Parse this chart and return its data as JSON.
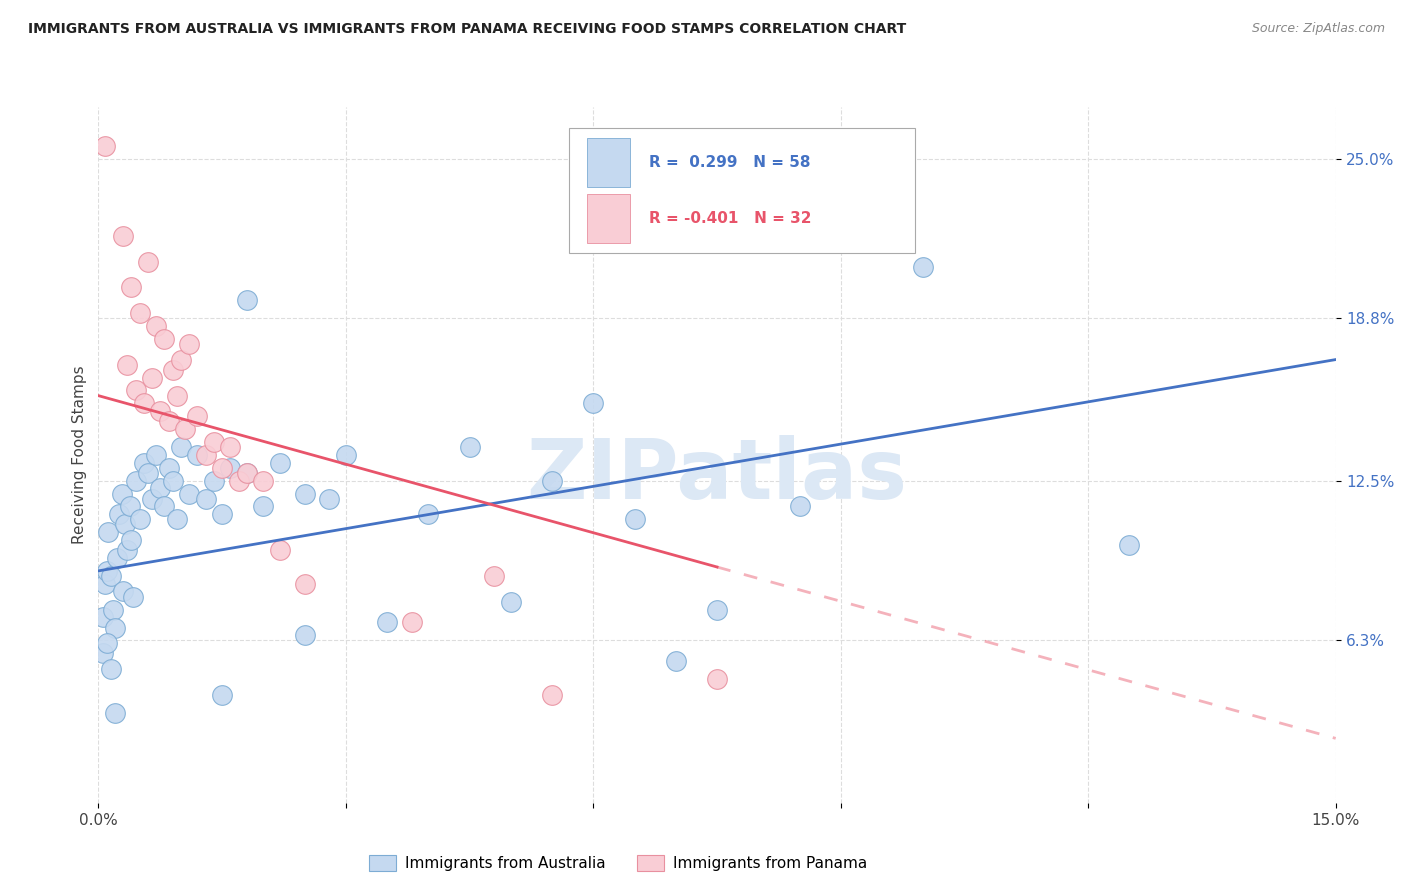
{
  "title": "IMMIGRANTS FROM AUSTRALIA VS IMMIGRANTS FROM PANAMA RECEIVING FOOD STAMPS CORRELATION CHART",
  "source": "Source: ZipAtlas.com",
  "ylabel": "Receiving Food Stamps",
  "ytick_values": [
    6.3,
    12.5,
    18.8,
    25.0
  ],
  "xmin": 0.0,
  "xmax": 15.0,
  "ymin": 0.0,
  "ymax": 27.0,
  "color_australia": "#c5d9f0",
  "color_panama": "#f9cdd5",
  "edge_color_australia": "#7dacd4",
  "edge_color_panama": "#e8909f",
  "line_color_australia": "#4472c4",
  "line_color_panama": "#e8546a",
  "watermark": "ZIPatlas",
  "watermark_color": "#dce8f5",
  "aus_line_x0": 0.0,
  "aus_line_y0": 9.0,
  "aus_line_x1": 15.0,
  "aus_line_y1": 17.2,
  "pan_line_x0": 0.0,
  "pan_line_y0": 15.8,
  "pan_line_x1": 15.0,
  "pan_line_y1": 2.5,
  "pan_solid_end_x": 7.5,
  "australia_scatter": [
    [
      0.05,
      7.2
    ],
    [
      0.08,
      8.5
    ],
    [
      0.1,
      9.0
    ],
    [
      0.12,
      10.5
    ],
    [
      0.15,
      8.8
    ],
    [
      0.18,
      7.5
    ],
    [
      0.2,
      6.8
    ],
    [
      0.22,
      9.5
    ],
    [
      0.25,
      11.2
    ],
    [
      0.28,
      12.0
    ],
    [
      0.3,
      8.2
    ],
    [
      0.32,
      10.8
    ],
    [
      0.35,
      9.8
    ],
    [
      0.38,
      11.5
    ],
    [
      0.4,
      10.2
    ],
    [
      0.42,
      8.0
    ],
    [
      0.45,
      12.5
    ],
    [
      0.5,
      11.0
    ],
    [
      0.55,
      13.2
    ],
    [
      0.6,
      12.8
    ],
    [
      0.65,
      11.8
    ],
    [
      0.7,
      13.5
    ],
    [
      0.75,
      12.2
    ],
    [
      0.8,
      11.5
    ],
    [
      0.85,
      13.0
    ],
    [
      0.9,
      12.5
    ],
    [
      0.95,
      11.0
    ],
    [
      1.0,
      13.8
    ],
    [
      1.1,
      12.0
    ],
    [
      1.2,
      13.5
    ],
    [
      1.3,
      11.8
    ],
    [
      1.4,
      12.5
    ],
    [
      1.5,
      11.2
    ],
    [
      1.6,
      13.0
    ],
    [
      1.8,
      12.8
    ],
    [
      2.0,
      11.5
    ],
    [
      2.2,
      13.2
    ],
    [
      2.5,
      12.0
    ],
    [
      2.8,
      11.8
    ],
    [
      3.0,
      13.5
    ],
    [
      3.5,
      7.0
    ],
    [
      4.0,
      11.2
    ],
    [
      4.5,
      13.8
    ],
    [
      5.0,
      7.8
    ],
    [
      5.5,
      12.5
    ],
    [
      6.0,
      15.5
    ],
    [
      6.5,
      11.0
    ],
    [
      7.0,
      5.5
    ],
    [
      7.5,
      7.5
    ],
    [
      8.5,
      11.5
    ],
    [
      10.0,
      20.8
    ],
    [
      12.5,
      10.0
    ],
    [
      0.05,
      5.8
    ],
    [
      0.1,
      6.2
    ],
    [
      0.15,
      5.2
    ],
    [
      0.2,
      3.5
    ],
    [
      1.5,
      4.2
    ],
    [
      2.5,
      6.5
    ],
    [
      1.8,
      19.5
    ]
  ],
  "panama_scatter": [
    [
      0.08,
      25.5
    ],
    [
      0.3,
      22.0
    ],
    [
      0.4,
      20.0
    ],
    [
      0.5,
      19.0
    ],
    [
      0.6,
      21.0
    ],
    [
      0.7,
      18.5
    ],
    [
      0.8,
      18.0
    ],
    [
      0.9,
      16.8
    ],
    [
      1.0,
      17.2
    ],
    [
      1.1,
      17.8
    ],
    [
      0.35,
      17.0
    ],
    [
      0.45,
      16.0
    ],
    [
      0.55,
      15.5
    ],
    [
      0.65,
      16.5
    ],
    [
      0.75,
      15.2
    ],
    [
      0.85,
      14.8
    ],
    [
      0.95,
      15.8
    ],
    [
      1.05,
      14.5
    ],
    [
      1.2,
      15.0
    ],
    [
      1.3,
      13.5
    ],
    [
      1.4,
      14.0
    ],
    [
      1.5,
      13.0
    ],
    [
      1.6,
      13.8
    ],
    [
      1.7,
      12.5
    ],
    [
      1.8,
      12.8
    ],
    [
      2.0,
      12.5
    ],
    [
      2.2,
      9.8
    ],
    [
      2.5,
      8.5
    ],
    [
      3.8,
      7.0
    ],
    [
      4.8,
      8.8
    ],
    [
      5.5,
      4.2
    ],
    [
      7.5,
      4.8
    ]
  ]
}
